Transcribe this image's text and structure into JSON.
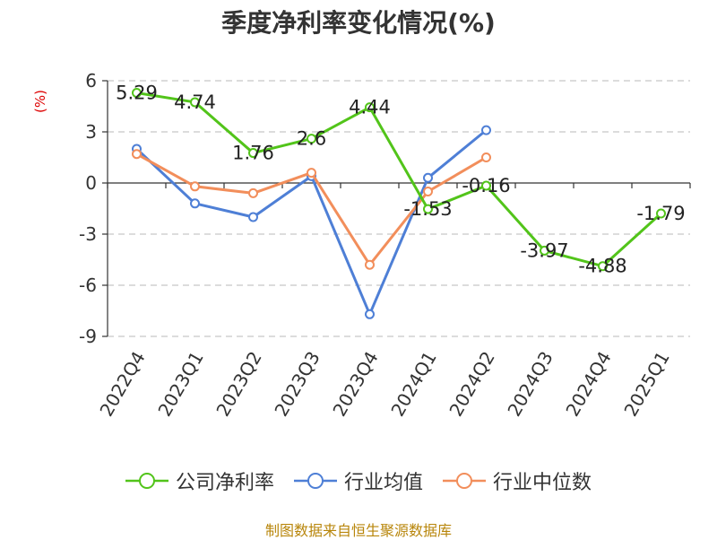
{
  "chart_data": {
    "type": "line",
    "title": "季度净利率变化情况(%)",
    "ylabel": "(%)",
    "categories": [
      "2022Q4",
      "2023Q1",
      "2023Q2",
      "2023Q3",
      "2023Q4",
      "2024Q1",
      "2024Q2",
      "2024Q3",
      "2024Q4",
      "2025Q1"
    ],
    "yticks": [
      6,
      3,
      0,
      -3,
      -6,
      -9
    ],
    "ylim": [
      -9,
      6
    ],
    "grid": true,
    "legend_position": "bottom",
    "series": [
      {
        "name": "公司净利率",
        "color": "#52c41a",
        "values": [
          5.29,
          4.74,
          1.76,
          2.6,
          4.44,
          -1.53,
          -0.16,
          -3.97,
          -4.88,
          -1.79
        ],
        "labels": [
          "5.29",
          "4.74",
          "1.76",
          "2.6",
          "4.44",
          "-1.53",
          "-0.16",
          "-3.97",
          "-4.88",
          "-1.79"
        ]
      },
      {
        "name": "行业均值",
        "color": "#4e7fd6",
        "values": [
          2.0,
          -1.2,
          -2.0,
          0.4,
          -7.7,
          0.3,
          3.1,
          null,
          null,
          null
        ]
      },
      {
        "name": "行业中位数",
        "color": "#f28e5b",
        "values": [
          1.7,
          -0.2,
          -0.6,
          0.6,
          -4.8,
          -0.5,
          1.5,
          null,
          null,
          null
        ]
      }
    ]
  },
  "source": "制图数据来自恒生聚源数据库"
}
